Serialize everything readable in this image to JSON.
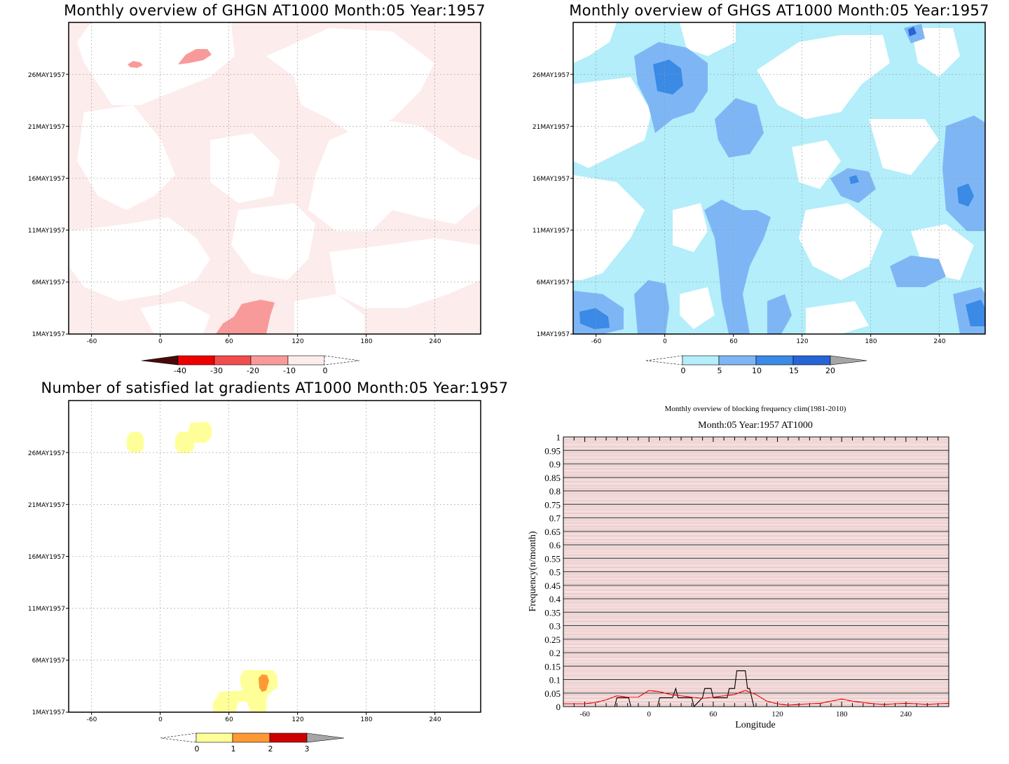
{
  "colors": {
    "red_scale": [
      "#4a0a0a",
      "#ee0000",
      "#f24d4d",
      "#f99a9a",
      "#fdecec"
    ],
    "blue_scale": [
      "#b3eefa",
      "#7eb6f5",
      "#3a8ae6",
      "#2764d6",
      "#a6a6a6"
    ],
    "gradient_scale": [
      "#ffff99",
      "#ff9933",
      "#cc0000",
      "#a6a6a6"
    ],
    "line_black": "#000000",
    "line_red": "#ee0000",
    "grid_red": "#d28080"
  },
  "chart_data": [
    {
      "id": "ghgn",
      "type": "heatmap",
      "title": "Monthly overview of GHGN AT1000 Month:05 Year:1957",
      "x_ticks": [
        "-60",
        "0",
        "60",
        "120",
        "180",
        "240"
      ],
      "x_tick_values": [
        -60,
        0,
        60,
        120,
        180,
        240
      ],
      "xlim": [
        -80,
        280
      ],
      "y_ticks": [
        "1MAY1957",
        "6MAY1957",
        "11MAY1957",
        "16MAY1957",
        "21MAY1957",
        "26MAY1957"
      ],
      "y_tick_values": [
        1,
        6,
        11,
        16,
        21,
        26
      ],
      "ylim": [
        1,
        31
      ],
      "colorbar": {
        "labels": [
          "-40",
          "-30",
          "-20",
          "-10",
          "0"
        ],
        "levels": [
          -40,
          -30,
          -20,
          -10,
          0
        ]
      },
      "regions": [
        {
          "level": "0 to -10",
          "lon": [
            -80,
            280
          ],
          "day": [
            1,
            31
          ],
          "note": "widespread weak negative anomaly"
        },
        {
          "level": "-10 to -20",
          "lon": [
            48,
            100
          ],
          "day": [
            1,
            4.5
          ]
        },
        {
          "level": "-10 to -20",
          "lon": [
            15,
            45
          ],
          "day": [
            27,
            29
          ]
        },
        {
          "level": "-10 to -20",
          "lon": [
            -27,
            -17
          ],
          "day": [
            26.7,
            27.6
          ]
        }
      ]
    },
    {
      "id": "ghgs",
      "type": "heatmap",
      "title": "Monthly overview of GHGS AT1000 Month:05 Year:1957",
      "x_ticks": [
        "-60",
        "0",
        "60",
        "120",
        "180",
        "240"
      ],
      "x_tick_values": [
        -60,
        0,
        60,
        120,
        180,
        240
      ],
      "xlim": [
        -80,
        280
      ],
      "y_ticks": [
        "1MAY1957",
        "6MAY1957",
        "11MAY1957",
        "16MAY1957",
        "21MAY1957",
        "26MAY1957"
      ],
      "y_tick_values": [
        1,
        6,
        11,
        16,
        21,
        26
      ],
      "ylim": [
        1,
        31
      ],
      "colorbar": {
        "labels": [
          "0",
          "5",
          "10",
          "15",
          "20"
        ],
        "levels": [
          0,
          5,
          10,
          15,
          20
        ]
      },
      "regions": [
        {
          "level": "0-5",
          "lon": [
            -80,
            280
          ],
          "day": [
            1,
            31
          ]
        },
        {
          "level": "5-10",
          "lon": [
            -30,
            5
          ],
          "day": [
            21,
            28
          ]
        },
        {
          "level": "5-10",
          "lon": [
            35,
            90
          ],
          "day": [
            1,
            14
          ]
        },
        {
          "level": "5-10",
          "lon": [
            150,
            175
          ],
          "day": [
            13,
            17
          ]
        },
        {
          "level": "5-10",
          "lon": [
            230,
            280
          ],
          "day": [
            10,
            21
          ]
        },
        {
          "level": "5-10",
          "lon": [
            -80,
            -30
          ],
          "day": [
            1,
            4
          ]
        },
        {
          "level": "10-15",
          "lon": [
            -12,
            2
          ],
          "day": [
            24,
            27
          ]
        },
        {
          "level": "10-15",
          "lon": [
            260,
            280
          ],
          "day": [
            1,
            3
          ]
        },
        {
          "level": "15-20",
          "lon": [
            210,
            220
          ],
          "day": [
            29,
            30
          ]
        }
      ]
    },
    {
      "id": "lat_gradients",
      "type": "heatmap",
      "title": "Number of satisfied lat gradients AT1000 Month:05 Year:1957",
      "x_ticks": [
        "-60",
        "0",
        "60",
        "120",
        "180",
        "240"
      ],
      "x_tick_values": [
        -60,
        0,
        60,
        120,
        180,
        240
      ],
      "xlim": [
        -80,
        280
      ],
      "y_ticks": [
        "1MAY1957",
        "6MAY1957",
        "11MAY1957",
        "16MAY1957",
        "21MAY1957",
        "26MAY1957"
      ],
      "y_tick_values": [
        1,
        6,
        11,
        16,
        21,
        26
      ],
      "ylim": [
        1,
        31
      ],
      "colorbar": {
        "labels": [
          "0",
          "1",
          "2",
          "3"
        ],
        "levels": [
          0,
          1,
          2,
          3
        ]
      },
      "regions": [
        {
          "level": "0-1",
          "lon": [
            -30,
            -15
          ],
          "day": [
            26,
            28
          ]
        },
        {
          "level": "0-1",
          "lon": [
            14,
            45
          ],
          "day": [
            26,
            29
          ]
        },
        {
          "level": "0-1",
          "lon": [
            45,
            102
          ],
          "day": [
            1,
            5
          ]
        },
        {
          "level": "1-2",
          "lon": [
            84,
            94
          ],
          "day": [
            3,
            4.1
          ]
        }
      ]
    },
    {
      "id": "blocking_frequency",
      "type": "line",
      "title": "Monthly overview of blocking frequency clim(1981-2010)",
      "subtitle": "Month:05 Year:1957  AT1000",
      "xlabel": "Longitude",
      "ylabel": "Frequency(n/month)",
      "x_ticks": [
        "-60",
        "0",
        "60",
        "120",
        "180",
        "240"
      ],
      "x_tick_values": [
        -60,
        0,
        60,
        120,
        180,
        240
      ],
      "xlim": [
        -80,
        280
      ],
      "y_ticks": [
        "0",
        "0.05",
        "0.1",
        "0.15",
        "0.2",
        "0.25",
        "0.3",
        "0.35",
        "0.4",
        "0.45",
        "0.5",
        "0.55",
        "0.6",
        "0.65",
        "0.7",
        "0.75",
        "0.8",
        "0.85",
        "0.9",
        "0.95",
        "1"
      ],
      "ylim": [
        0,
        1
      ],
      "grid": true,
      "series": [
        {
          "color": "#000000",
          "x": [
            -80,
            -32,
            -30,
            -19,
            -17,
            8,
            10,
            20,
            22,
            25,
            27,
            30,
            32,
            40,
            42,
            50,
            52,
            58,
            60,
            68,
            70,
            73,
            75,
            80,
            82,
            90,
            92,
            94,
            96,
            98,
            100,
            280
          ],
          "y": [
            0,
            0,
            0.033,
            0.033,
            0,
            0,
            0.033,
            0.033,
            0.033,
            0.067,
            0.033,
            0.033,
            0.033,
            0.033,
            0,
            0.033,
            0.067,
            0.067,
            0.033,
            0.033,
            0.033,
            0.033,
            0.067,
            0.067,
            0.133,
            0.133,
            0.067,
            0.067,
            0.033,
            0,
            0,
            0
          ]
        },
        {
          "color": "#ee0000",
          "x": [
            -80,
            -60,
            -50,
            -40,
            -30,
            -20,
            -10,
            0,
            10,
            20,
            30,
            40,
            50,
            60,
            70,
            80,
            90,
            100,
            110,
            120,
            130,
            140,
            150,
            160,
            170,
            180,
            190,
            200,
            210,
            220,
            230,
            240,
            250,
            260,
            270,
            280
          ],
          "y": [
            0.01,
            0.01,
            0.015,
            0.025,
            0.04,
            0.035,
            0.035,
            0.06,
            0.055,
            0.045,
            0.04,
            0.035,
            0.03,
            0.035,
            0.04,
            0.045,
            0.06,
            0.045,
            0.02,
            0.01,
            0.005,
            0.008,
            0.01,
            0.012,
            0.02,
            0.028,
            0.02,
            0.015,
            0.01,
            0.008,
            0.01,
            0.012,
            0.01,
            0.008,
            0.01,
            0.012
          ]
        }
      ]
    }
  ]
}
